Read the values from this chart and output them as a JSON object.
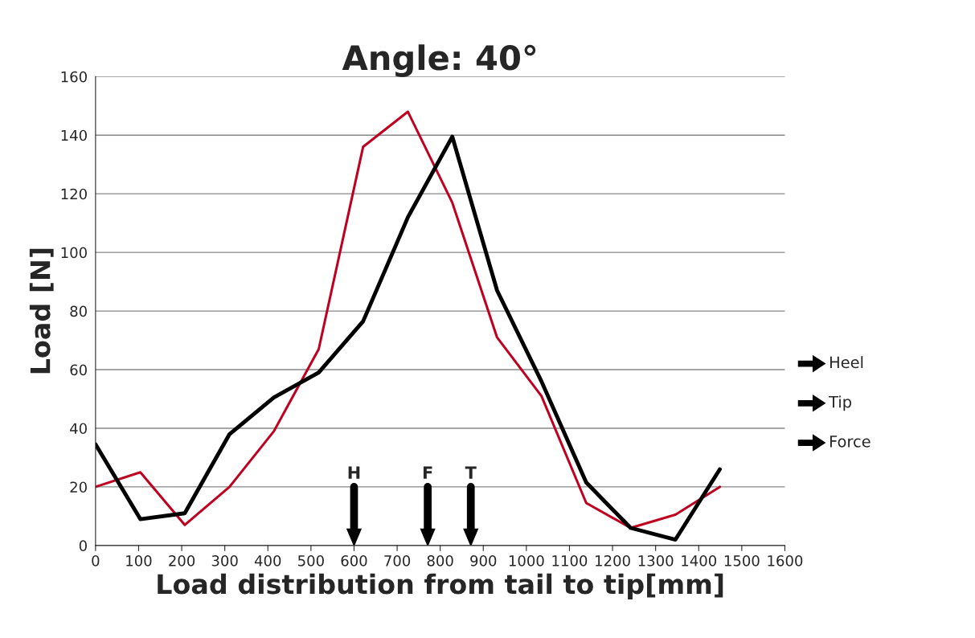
{
  "chart_data": {
    "type": "line",
    "title": "Angle: 40°",
    "xlabel": "Load distribution from tail to tip[mm]",
    "ylabel": "Load [N]",
    "x": [
      0,
      104,
      207,
      311,
      414,
      518,
      621,
      725,
      828,
      932,
      1035,
      1139,
      1242,
      1346,
      1449
    ],
    "series": [
      {
        "color": "#c00020",
        "values": [
          20,
          25,
          7,
          20,
          39,
          67,
          136,
          148,
          117,
          71,
          51,
          14.5,
          6,
          10.5,
          20
        ]
      },
      {
        "color": "#000000",
        "values": [
          34.5,
          9,
          11,
          38,
          50.5,
          59,
          76.5,
          112,
          139.5,
          87,
          56,
          21.5,
          6,
          2,
          26
        ]
      }
    ],
    "xlim": [
      0,
      1600
    ],
    "xticks": [
      0,
      100,
      200,
      300,
      400,
      500,
      600,
      700,
      800,
      900,
      1000,
      1100,
      1200,
      1300,
      1400,
      1500,
      1600
    ],
    "ylim": [
      0,
      160
    ],
    "yticks": [
      0,
      20,
      40,
      60,
      80,
      100,
      120,
      140,
      160
    ],
    "grid": "y",
    "marker": "none",
    "ref_lines": [
      {
        "axis": "x",
        "value": 600,
        "label": "H",
        "color": "#000000"
      },
      {
        "axis": "x",
        "value": 771,
        "label": "F",
        "color": "#000000"
      },
      {
        "axis": "x",
        "value": 871,
        "label": "T",
        "color": "#000000"
      }
    ],
    "annotations": [
      "Heel",
      "Tip",
      "Force"
    ]
  }
}
